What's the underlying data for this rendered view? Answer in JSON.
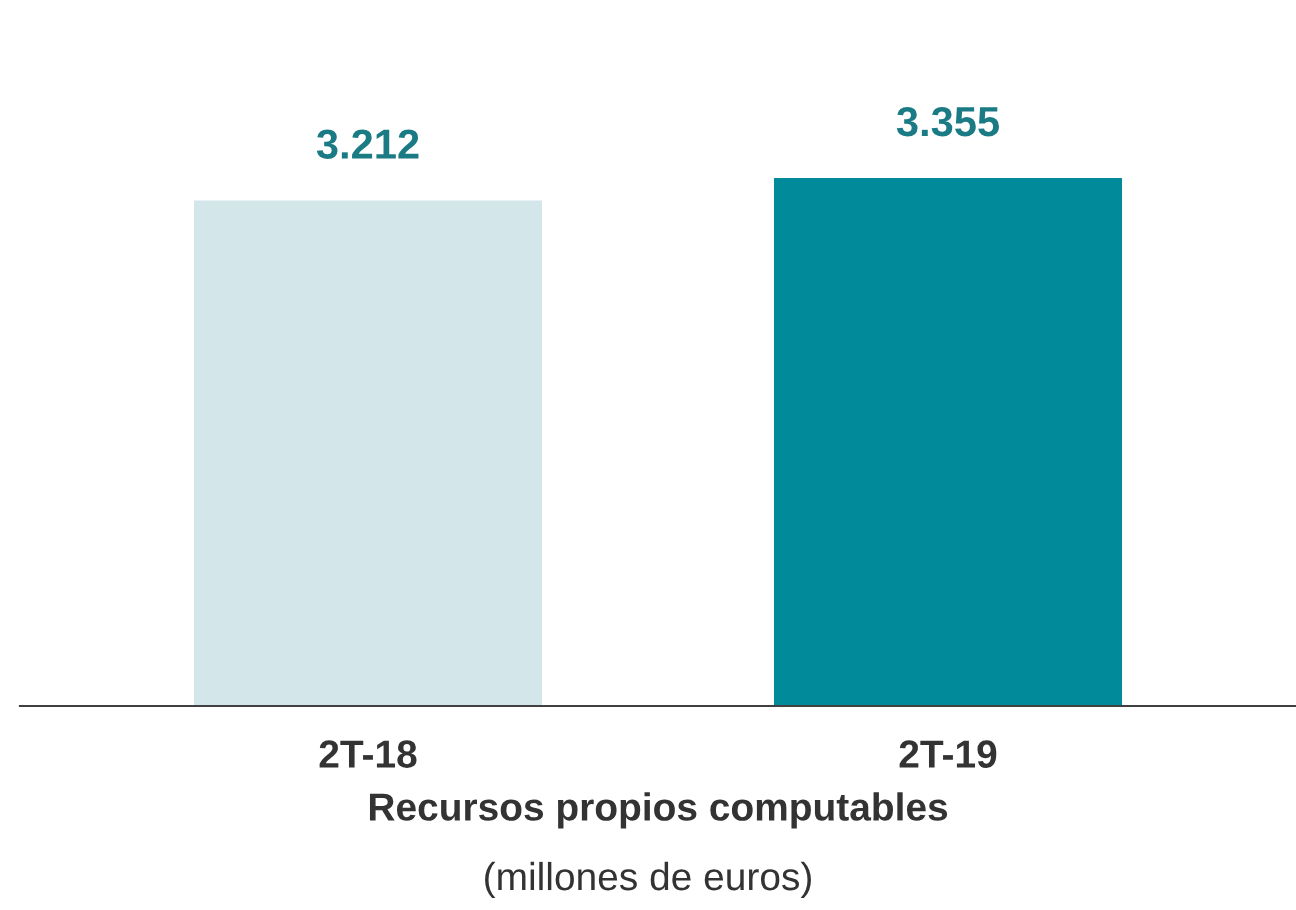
{
  "chart_data": {
    "type": "bar",
    "categories": [
      "2T-18",
      "2T-19"
    ],
    "values": [
      3212,
      3355
    ],
    "colors": [
      "#d3e6e9",
      "#008a9a"
    ],
    "value_labels": [
      "3.212",
      "3.355"
    ],
    "xlabel": "Recursos propios computables",
    "annotations": [
      "(millones de euros)"
    ],
    "grid": false
  }
}
